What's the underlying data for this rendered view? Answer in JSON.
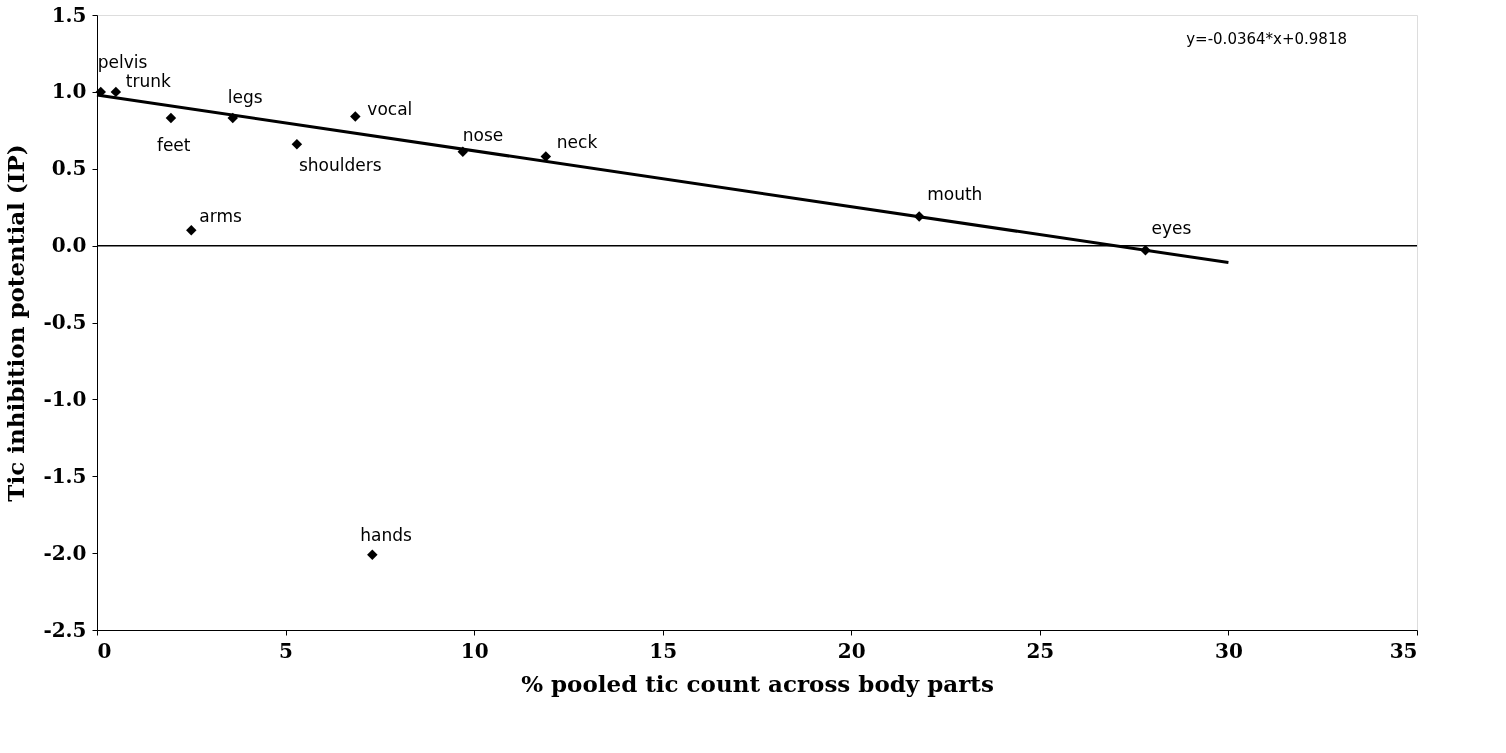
{
  "chart_data": {
    "type": "scatter",
    "xlabel": "% pooled tic count across body parts",
    "ylabel": "Tic inhibition potential (IP)",
    "x": [
      0.1,
      0.5,
      1.96,
      3.6,
      5.3,
      6.85,
      2.5,
      7.3,
      9.7,
      11.9,
      21.8,
      27.8
    ],
    "series": [
      {
        "color": "#000000",
        "marker": "diamond",
        "values": [
          1.0,
          1.0,
          0.83,
          0.83,
          0.66,
          0.84,
          0.1,
          -2.01,
          0.61,
          0.58,
          0.19,
          -0.03
        ]
      },
      {
        "type": "line",
        "color": "#000000",
        "marker": "none",
        "line_style": "solid",
        "x": [
          0,
          30
        ],
        "values": [
          0.98,
          -0.11
        ]
      }
    ],
    "xlim": [
      0,
      35
    ],
    "xticks": [
      0,
      5,
      10,
      15,
      20,
      25,
      30,
      35
    ],
    "ylim": [
      -2.5,
      1.5
    ],
    "yticks": [
      {
        "value": -2.5,
        "label": "-2.5"
      },
      {
        "value": -2.0,
        "label": "-2.0"
      },
      {
        "value": -1.5,
        "label": "-1.5"
      },
      {
        "value": -1.0,
        "label": "-1.0"
      },
      {
        "value": -0.5,
        "label": "-0.5"
      },
      {
        "value": 0,
        "label": "0.0"
      },
      {
        "value": 0.5,
        "label": "0.5"
      },
      {
        "value": 1.0,
        "label": "1.0"
      },
      {
        "value": 1.5,
        "label": "1.5"
      }
    ],
    "grid": false,
    "legend": false,
    "ref_lines": [
      {
        "axis": "y",
        "value": 0,
        "color": "#000000",
        "line_style": "solid"
      }
    ],
    "annotations": [
      {
        "text": "pelvis",
        "x": 0.1,
        "y": 1.0
      },
      {
        "text": "trunk",
        "x": 0.5,
        "y": 1.0
      },
      {
        "text": "feet",
        "x": 1.96,
        "y": 0.83
      },
      {
        "text": "legs",
        "x": 3.6,
        "y": 0.83
      },
      {
        "text": "shoulders",
        "x": 5.3,
        "y": 0.66
      },
      {
        "text": "vocal",
        "x": 6.85,
        "y": 0.84
      },
      {
        "text": "arms",
        "x": 2.5,
        "y": 0.1
      },
      {
        "text": "hands",
        "x": 7.3,
        "y": -2.01
      },
      {
        "text": "nose",
        "x": 9.7,
        "y": 0.61
      },
      {
        "text": "neck",
        "x": 11.9,
        "y": 0.58
      },
      {
        "text": "mouth",
        "x": 21.8,
        "y": 0.19
      },
      {
        "text": "eyes",
        "x": 27.8,
        "y": -0.03
      },
      "y=-0.0364*x+0.9818"
    ]
  }
}
